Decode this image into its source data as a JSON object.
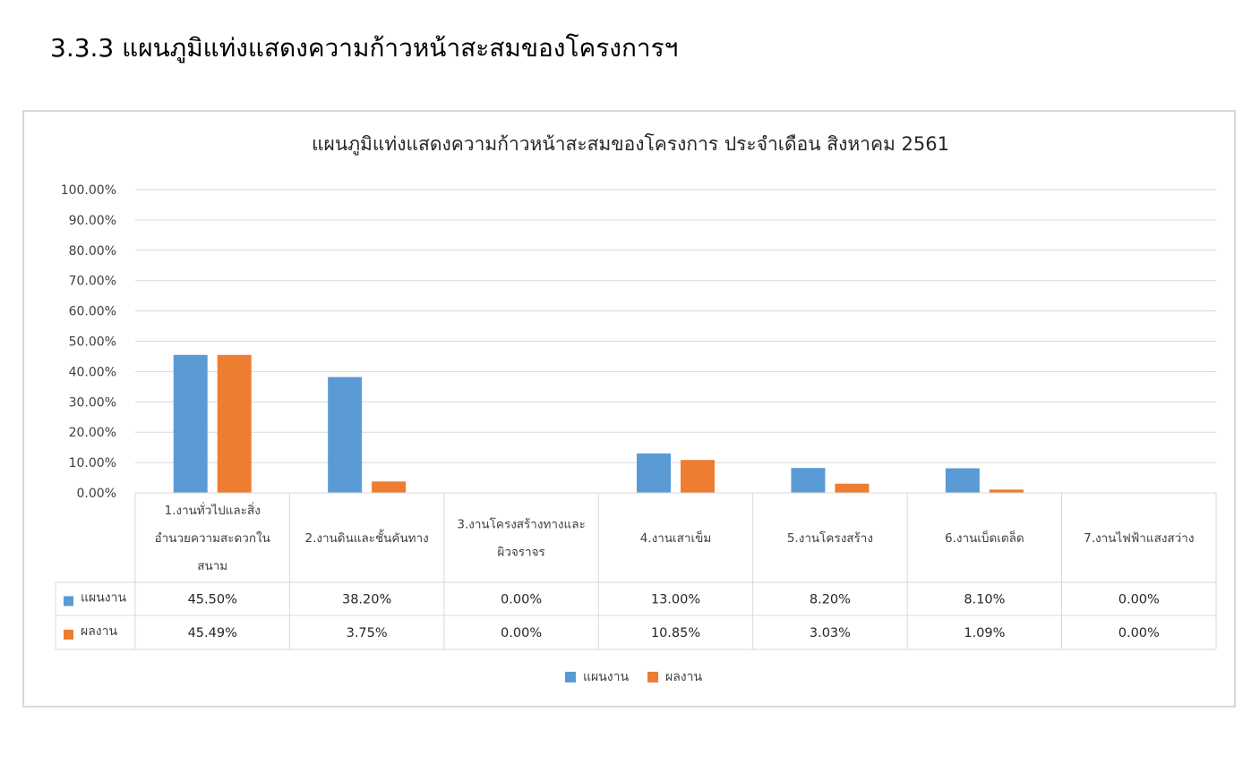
{
  "heading": "3.3.3  แผนภูมิแท่งแสดงความก้าวหน้าสะสมของโครงการฯ",
  "chart_data": {
    "type": "bar",
    "title": "แผนภูมิแท่งแสดงความก้าวหน้าสะสมของโครงการ ประจำเดือน สิงหาคม 2561",
    "categories": [
      [
        "1.งานทั่วไปและสิ่ง",
        "อำนวยความสะดวกใน",
        "สนาม"
      ],
      [
        "2.งานดินและชั้นคันทาง"
      ],
      [
        "3.งานโครงสร้างทางและ",
        "ผิวจราจร"
      ],
      [
        "4.งานเสาเข็ม"
      ],
      [
        "5.งานโครงสร้าง"
      ],
      [
        "6.งานเบ็ดเตล็ด"
      ],
      [
        "7.งานไฟฟ้าแสงสว่าง"
      ]
    ],
    "series": [
      {
        "name": "แผนงาน",
        "color": "#5b9bd5",
        "values": [
          45.5,
          38.2,
          0.0,
          13.0,
          8.2,
          8.1,
          0.0
        ],
        "labels": [
          "45.50%",
          "38.20%",
          "0.00%",
          "13.00%",
          "8.20%",
          "8.10%",
          "0.00%"
        ]
      },
      {
        "name": "ผลงาน",
        "color": "#ed7d31",
        "values": [
          45.49,
          3.75,
          0.0,
          10.85,
          3.03,
          1.09,
          0.0
        ],
        "labels": [
          "45.49%",
          "3.75%",
          "0.00%",
          "10.85%",
          "3.03%",
          "1.09%",
          "0.00%"
        ]
      }
    ],
    "yticks": [
      "0.00%",
      "10.00%",
      "20.00%",
      "30.00%",
      "40.00%",
      "50.00%",
      "60.00%",
      "70.00%",
      "80.00%",
      "90.00%",
      "100.00%"
    ],
    "ylim": [
      0,
      100
    ],
    "grid": true,
    "legend_position": "bottom",
    "data_table": true
  }
}
